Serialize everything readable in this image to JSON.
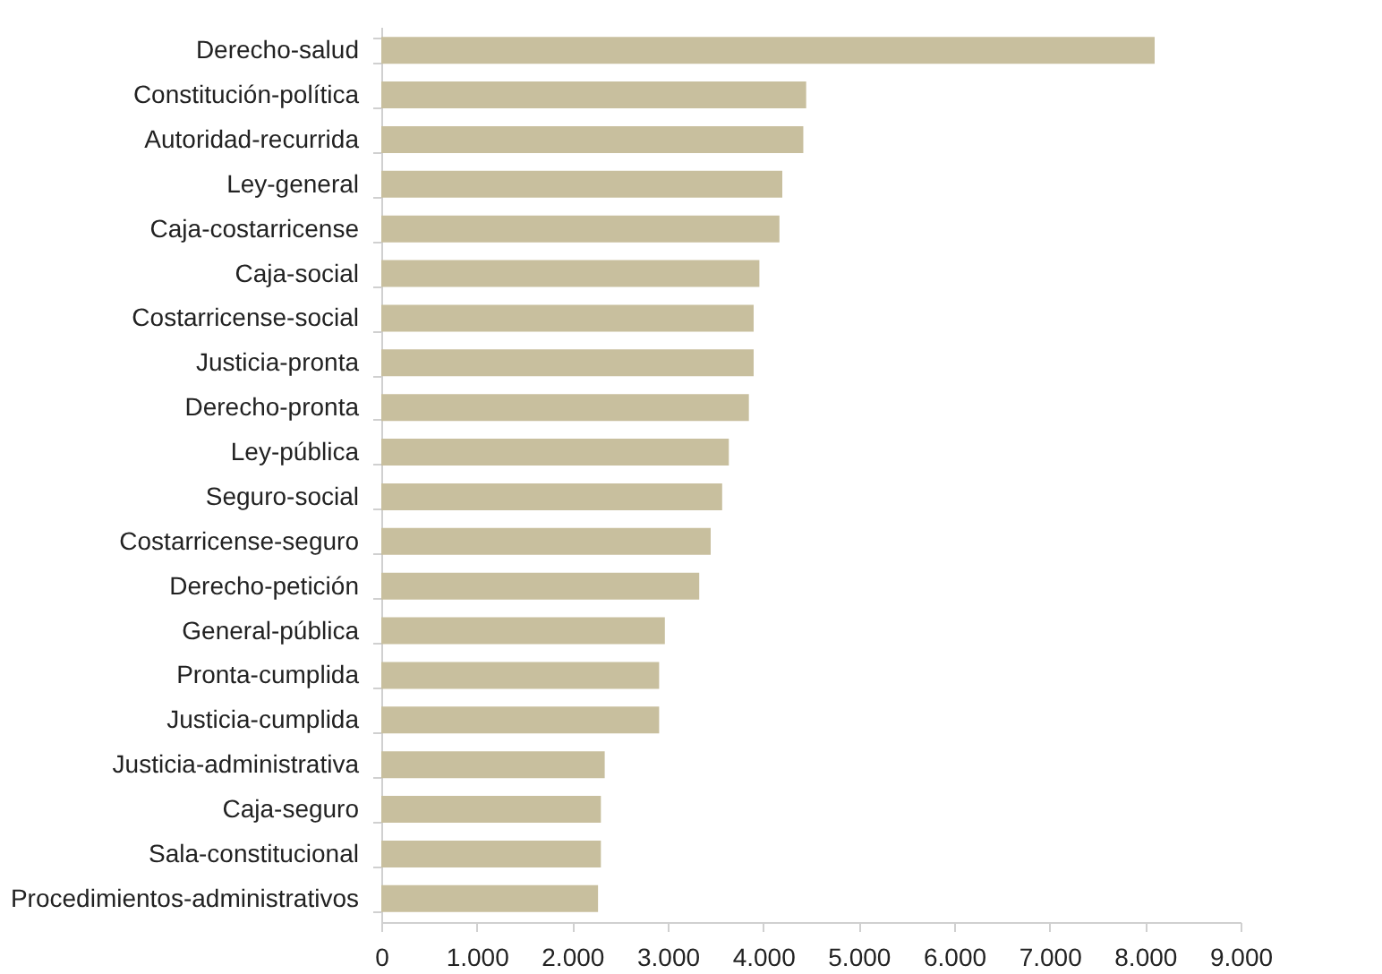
{
  "chart_data": {
    "type": "bar",
    "orientation": "horizontal",
    "categories": [
      "Derecho-salud",
      "Constitución-política",
      "Autoridad-recurrida",
      "Ley-general",
      "Caja-costarricense",
      "Caja-social",
      "Costarricense-social",
      "Justicia-pronta",
      "Derecho-pronta",
      "Ley-pública",
      "Seguro-social",
      "Costarricense-seguro",
      "Derecho-petición",
      "General-pública",
      "Pronta-cumplida",
      "Justicia-cumplida",
      "Justicia-administrativa",
      "Caja-seguro",
      "Sala-constitucional",
      "Procedimientos-administrativos"
    ],
    "values": [
      8100,
      4450,
      4420,
      4200,
      4170,
      3960,
      3900,
      3900,
      3850,
      3640,
      3570,
      3450,
      3330,
      2970,
      2910,
      2910,
      2340,
      2300,
      2300,
      2270
    ],
    "color": "#c8bf9e",
    "xlim": [
      0,
      9000
    ],
    "xticks": [
      0,
      {
        "value": 1000,
        "label": "1.000"
      },
      {
        "value": 2000,
        "label": "2.000"
      },
      {
        "value": 3000,
        "label": "3.000"
      },
      {
        "value": 4000,
        "label": "4.000"
      },
      {
        "value": 5000,
        "label": "5.000"
      },
      {
        "value": 6000,
        "label": "6.000"
      },
      {
        "value": 7000,
        "label": "7.000"
      },
      {
        "value": 8000,
        "label": "8.000"
      },
      {
        "value": 9000,
        "label": "9.000"
      }
    ],
    "grid": false
  }
}
